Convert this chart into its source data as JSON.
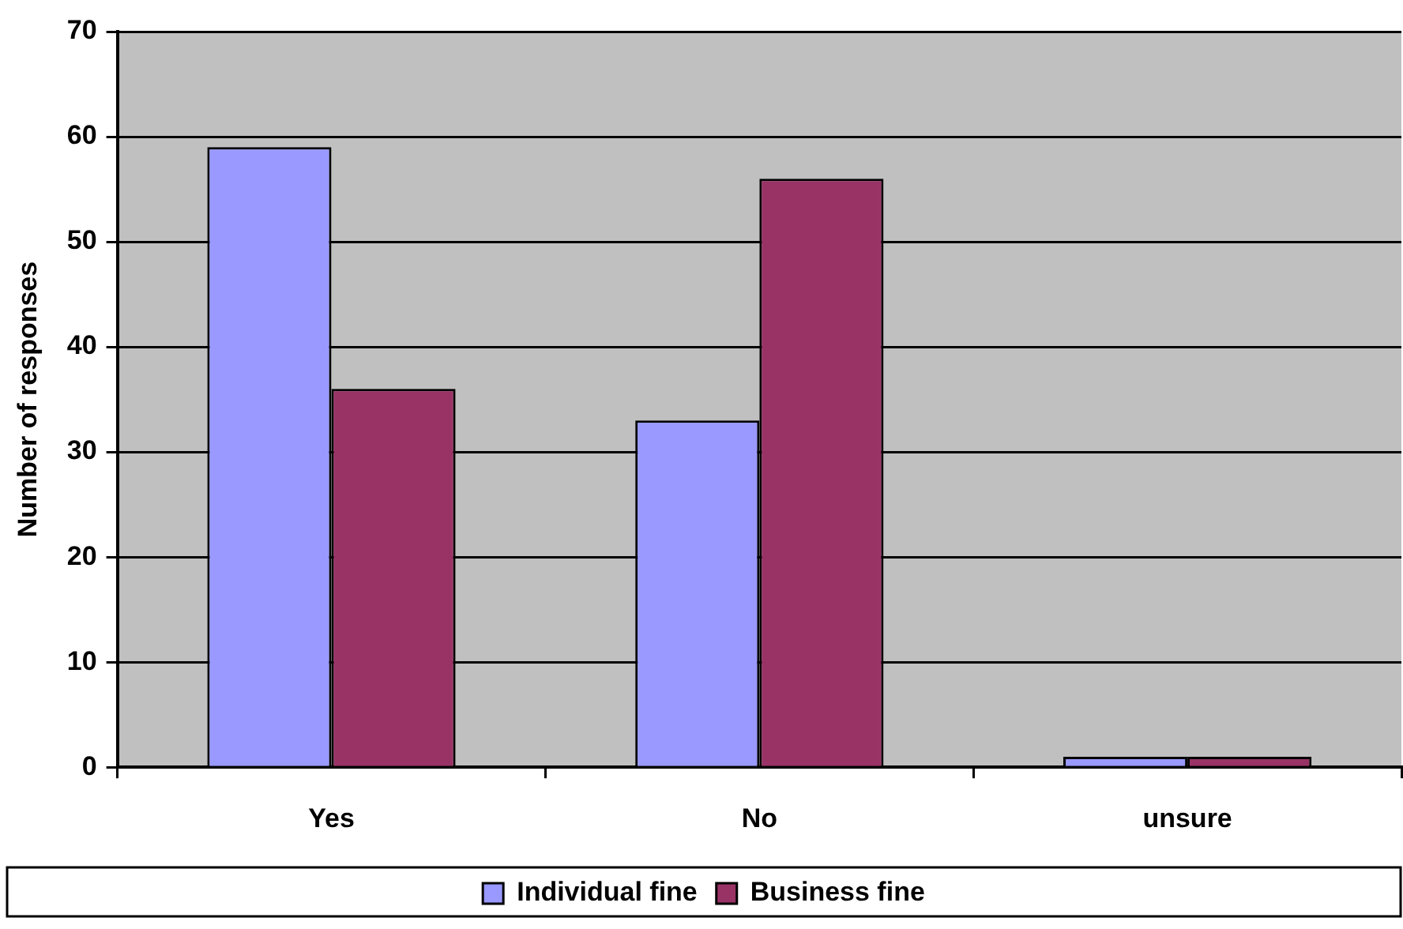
{
  "chart_data": {
    "type": "bar",
    "ylabel": "Number of responses",
    "categories": [
      "Yes",
      "No",
      "unsure"
    ],
    "series": [
      {
        "name": "Individual fine",
        "color": "#9999ff",
        "values": [
          59,
          33,
          1
        ]
      },
      {
        "name": "Business fine",
        "color": "#993366",
        "values": [
          36,
          56,
          1
        ]
      }
    ],
    "ylim": [
      0,
      70
    ],
    "yticks": [
      0,
      10,
      20,
      30,
      40,
      50,
      60,
      70
    ],
    "grid": "y",
    "legend": "bottom"
  }
}
